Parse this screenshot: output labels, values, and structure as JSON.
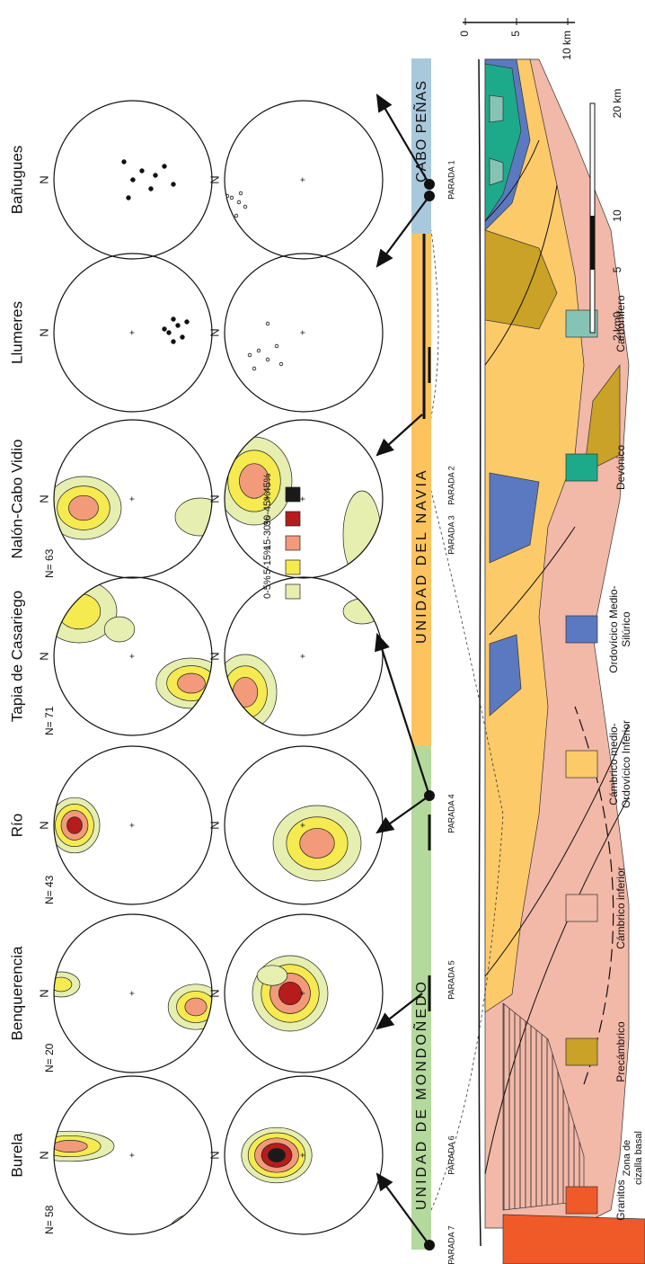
{
  "stations": [
    {
      "name": "Burela",
      "n": "N= 58"
    },
    {
      "name": "Benquerencia",
      "n": "N= 20"
    },
    {
      "name": "Río",
      "n": "N= 43"
    },
    {
      "name": "Tapia de Casariego",
      "n": "N= 71"
    },
    {
      "name": "Nalón-Cabo Vidio",
      "n": "N= 63"
    },
    {
      "name": "Llumeres"
    },
    {
      "name": "Bañugues"
    }
  ],
  "north_label": "N",
  "density_legend": [
    "0-5%",
    "5-15%",
    "15-30%",
    "30-45%",
    "> 45%"
  ],
  "units": [
    "UNIDAD DE MONDOÑEDO",
    "UNIDAD DEL NAVIA",
    "CABO PEÑAS"
  ],
  "stops": [
    "PARADA 7",
    "PARADA 6",
    "PARADA 5",
    "PARADA 4",
    "PARADA 3",
    "PARADA 2",
    "PARADA 1"
  ],
  "annotation": [
    "Zona de",
    "cizalla basal"
  ],
  "lithology": [
    [
      "Granitos"
    ],
    [
      "Precámbrico"
    ],
    [
      "Cámbrico inferior"
    ],
    [
      "Cámbrico medio-",
      "Ordovícico Inferior"
    ],
    [
      "Ordovícico Medio-",
      "Silúrico"
    ],
    [
      "Devónico"
    ],
    [
      "Carbonífero"
    ]
  ],
  "vertical_scale": [
    "0",
    "5",
    "10 km"
  ],
  "horizontal_scale": [
    "2 km",
    "0",
    "5",
    "10",
    "20 km"
  ]
}
